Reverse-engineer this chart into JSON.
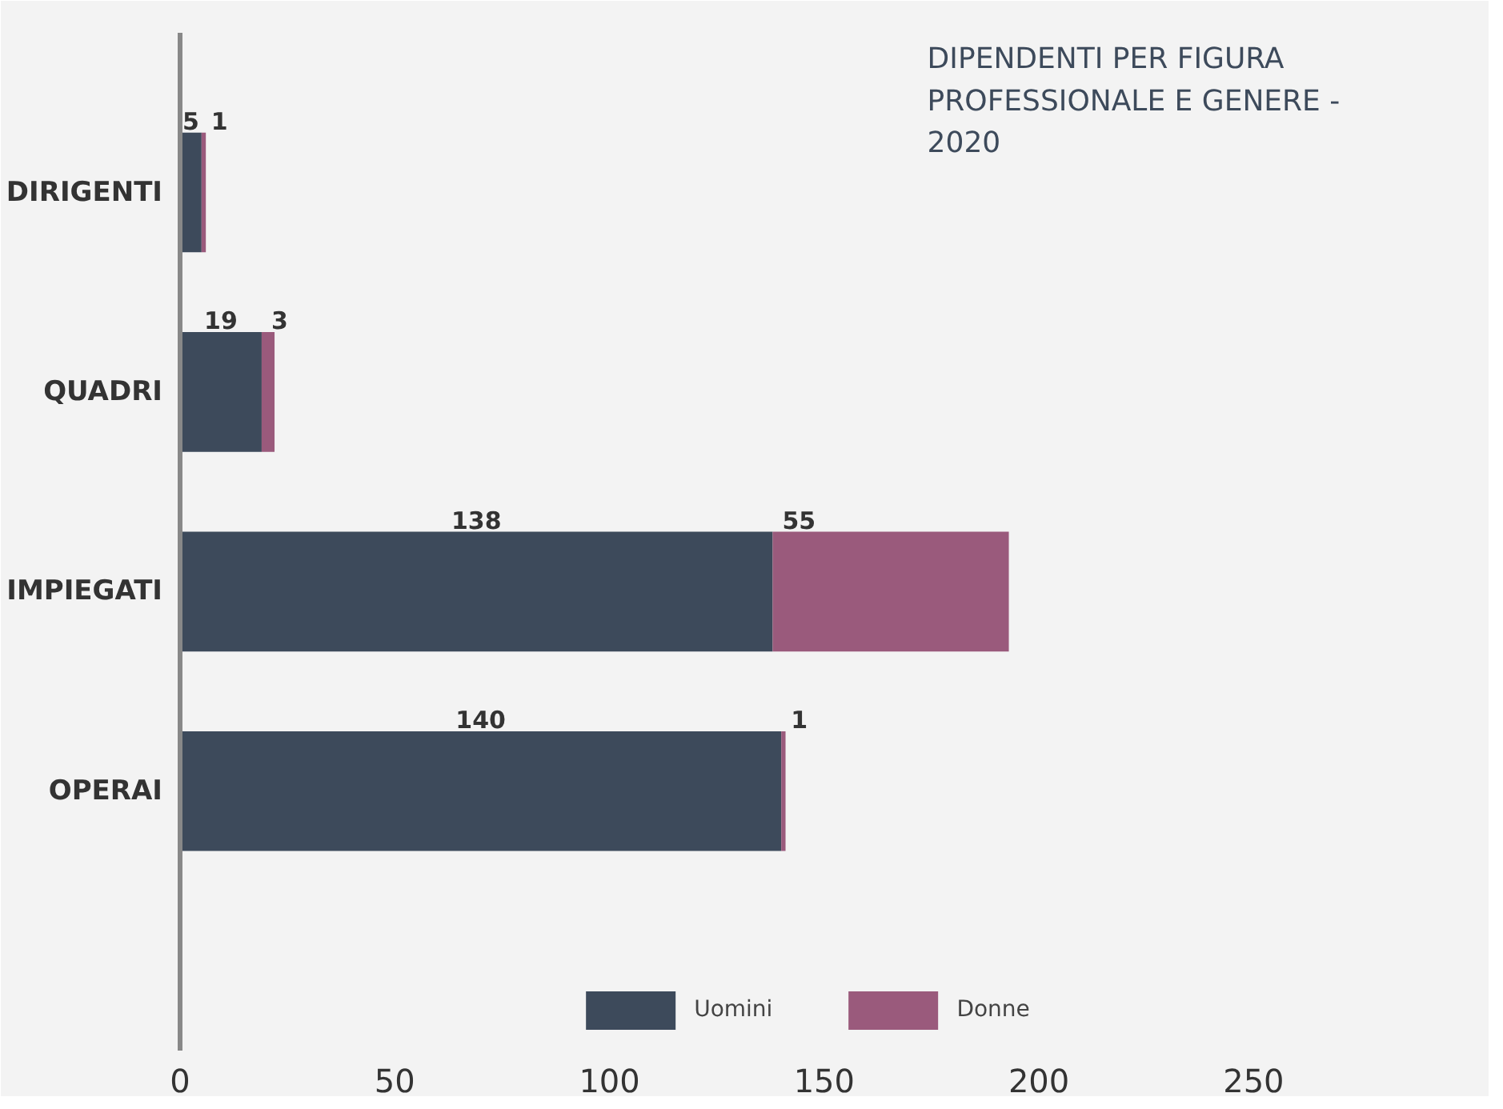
{
  "chart_data": {
    "type": "bar",
    "orientation": "horizontal",
    "stacked": true,
    "title": "DIPENDENTI PER FIGURA PROFESSIONALE E GENERE - 2020",
    "categories": [
      "DIRIGENTI",
      "QUADRI",
      "IMPIEGATI",
      "OPERAI"
    ],
    "series": [
      {
        "name": "Uomini",
        "color": "#3d4a5b",
        "values": [
          5,
          19,
          138,
          140
        ]
      },
      {
        "name": "Donne",
        "color": "#9a5a7c",
        "values": [
          1,
          3,
          55,
          1
        ]
      }
    ],
    "xlim": [
      0,
      290
    ],
    "xticks": [
      0,
      50,
      100,
      150,
      200,
      250
    ],
    "data_labels": true,
    "grid": false,
    "legend": "bottom"
  }
}
